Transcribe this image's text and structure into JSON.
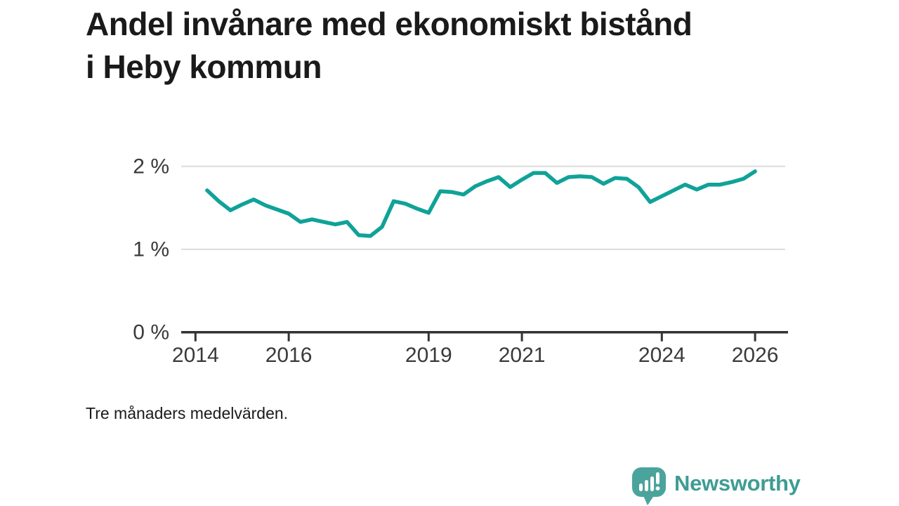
{
  "title": "Andel invånare med ekonomiskt bistånd i Heby kommun",
  "footnote": "Tre månaders medelvärden.",
  "branding": {
    "name": "Newsworthy",
    "icon": "newsworthy-speech-bubble-bar-chart",
    "icon_color": "#4BA49C",
    "text_color": "#3E9C94"
  },
  "colors": {
    "line": "#10A298",
    "grid": "#DCDCDC",
    "axis": "#333333",
    "tick_label": "#3A3A3A"
  },
  "chart_data": {
    "type": "line",
    "title": "Andel invånare med ekonomiskt bistånd i Heby kommun",
    "note": "Tre månaders medelvärden.",
    "xlabel": "",
    "ylabel": "",
    "grid": "horizontal-only",
    "legend_position": "none",
    "line_color": "#10A298",
    "xlim": [
      2013.7,
      2026.7
    ],
    "ylim": [
      0,
      2.33
    ],
    "x_tick_values": [
      2014,
      2016,
      2019,
      2021,
      2024,
      2026
    ],
    "x_ticks": [
      "2014",
      "2016",
      "2019",
      "2021",
      "2024",
      "2026"
    ],
    "y_tick_values": [
      0,
      1,
      2
    ],
    "y_ticks": [
      "0 %",
      "1 %",
      "2 %"
    ],
    "series": [
      {
        "name": "Andel invånare med ekonomiskt bistånd (%)",
        "x": [
          2014.25,
          2014.5,
          2014.75,
          2015.0,
          2015.25,
          2015.5,
          2015.75,
          2016.0,
          2016.25,
          2016.5,
          2016.75,
          2017.0,
          2017.25,
          2017.5,
          2017.75,
          2018.0,
          2018.25,
          2018.5,
          2018.75,
          2019.0,
          2019.25,
          2019.5,
          2019.75,
          2020.0,
          2020.25,
          2020.5,
          2020.75,
          2021.0,
          2021.25,
          2021.5,
          2021.75,
          2022.0,
          2022.25,
          2022.5,
          2022.75,
          2023.0,
          2023.25,
          2023.5,
          2023.75,
          2024.0,
          2024.25,
          2024.5,
          2024.75,
          2025.0,
          2025.25,
          2025.5,
          2025.75,
          2026.0
        ],
        "values": [
          1.71,
          1.58,
          1.47,
          1.54,
          1.6,
          1.53,
          1.48,
          1.43,
          1.33,
          1.36,
          1.33,
          1.3,
          1.33,
          1.17,
          1.16,
          1.27,
          1.58,
          1.55,
          1.49,
          1.44,
          1.7,
          1.69,
          1.66,
          1.76,
          1.82,
          1.87,
          1.75,
          1.84,
          1.92,
          1.92,
          1.8,
          1.87,
          1.88,
          1.87,
          1.79,
          1.86,
          1.85,
          1.75,
          1.57,
          1.64,
          1.71,
          1.78,
          1.72,
          1.78,
          1.78,
          1.81,
          1.85,
          1.94
        ]
      }
    ]
  }
}
